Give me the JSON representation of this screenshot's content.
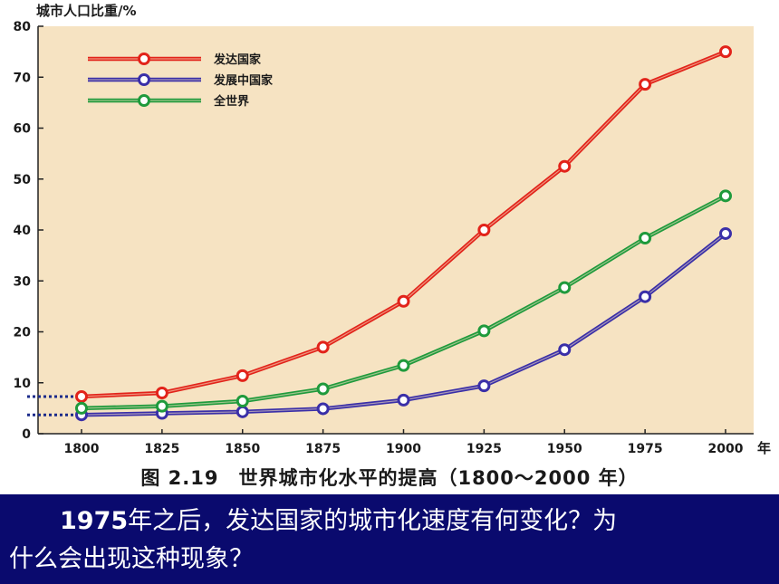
{
  "chart_data": {
    "type": "line",
    "ylabel": "城市人口比重/%",
    "xlabel": "年",
    "x": [
      1800,
      1825,
      1850,
      1875,
      1900,
      1925,
      1950,
      1975,
      2000
    ],
    "xticks": [
      "1800",
      "1825",
      "1850",
      "1875",
      "1900",
      "1925",
      "1950",
      "1975",
      "2000"
    ],
    "ylim": [
      0,
      80
    ],
    "yticks": [
      0,
      10,
      20,
      30,
      40,
      50,
      60,
      70,
      80
    ],
    "grid": false,
    "legend": "top-left",
    "series": [
      {
        "name": "发达国家",
        "color": "#e2231a",
        "values": [
          7.3,
          8,
          11.4,
          17,
          26,
          40,
          52.5,
          68.6,
          75
        ]
      },
      {
        "name": "发展中国家",
        "color": "#3a2fa8",
        "values": [
          3.7,
          4,
          4.3,
          4.9,
          6.6,
          9.4,
          16.5,
          26.9,
          39.3
        ]
      },
      {
        "name": "全世界",
        "color": "#1f9a3c",
        "values": [
          5,
          5.4,
          6.4,
          8.8,
          13.4,
          20.2,
          28.7,
          38.4,
          46.7
        ]
      }
    ],
    "caption": "图 2.19　世界城市化水平的提高（1800～2000 年）"
  },
  "question": {
    "year": "1975",
    "line1_rest": "年之后，发达国家的城市化速度有何变化？为",
    "line2": "什么会出现这种现象？"
  },
  "colors": {
    "plot_background": "#f6e3c2",
    "question_background": "#0a0a6e"
  }
}
